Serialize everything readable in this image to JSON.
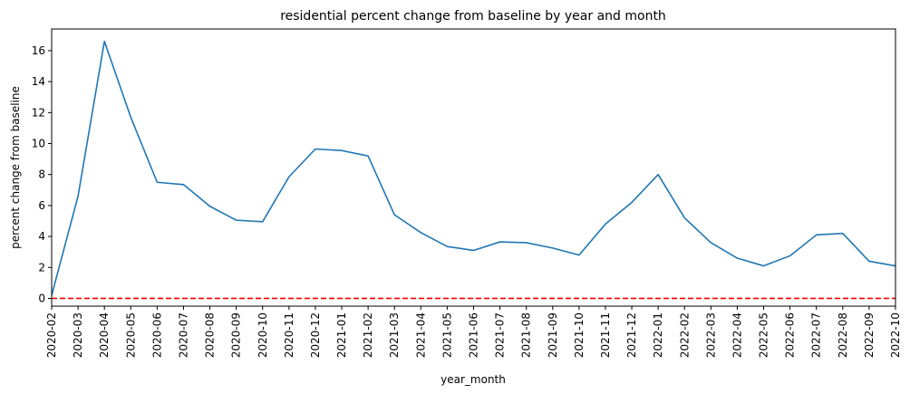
{
  "chart_data": {
    "type": "line",
    "title": "residential percent change from baseline by year and month",
    "xlabel": "year_month",
    "ylabel": "percent change from baseline",
    "ylim": [
      -0.5,
      17.4
    ],
    "yticks": [
      0,
      2,
      4,
      6,
      8,
      10,
      12,
      14,
      16
    ],
    "grid": false,
    "categories": [
      "2020-02",
      "2020-03",
      "2020-04",
      "2020-05",
      "2020-06",
      "2020-07",
      "2020-08",
      "2020-09",
      "2020-10",
      "2020-11",
      "2020-12",
      "2021-01",
      "2021-02",
      "2021-03",
      "2021-04",
      "2021-05",
      "2021-06",
      "2021-07",
      "2021-08",
      "2021-09",
      "2021-10",
      "2021-11",
      "2021-12",
      "2022-01",
      "2022-02",
      "2022-03",
      "2022-04",
      "2022-05",
      "2022-06",
      "2022-07",
      "2022-08",
      "2022-09",
      "2022-10"
    ],
    "series": [
      {
        "color": "#1f77b4",
        "values": [
          0.2,
          6.6,
          16.6,
          11.7,
          7.5,
          7.35,
          5.95,
          5.05,
          4.95,
          7.85,
          9.65,
          9.55,
          9.2,
          5.4,
          4.25,
          3.35,
          3.1,
          3.65,
          3.6,
          3.25,
          2.8,
          4.8,
          6.2,
          8.0,
          5.2,
          3.6,
          2.6,
          2.1,
          2.75,
          4.1,
          4.2,
          2.4,
          2.1
        ]
      }
    ],
    "reference_line": {
      "y": 0,
      "color": "#ff0000",
      "style": "dashed"
    }
  }
}
